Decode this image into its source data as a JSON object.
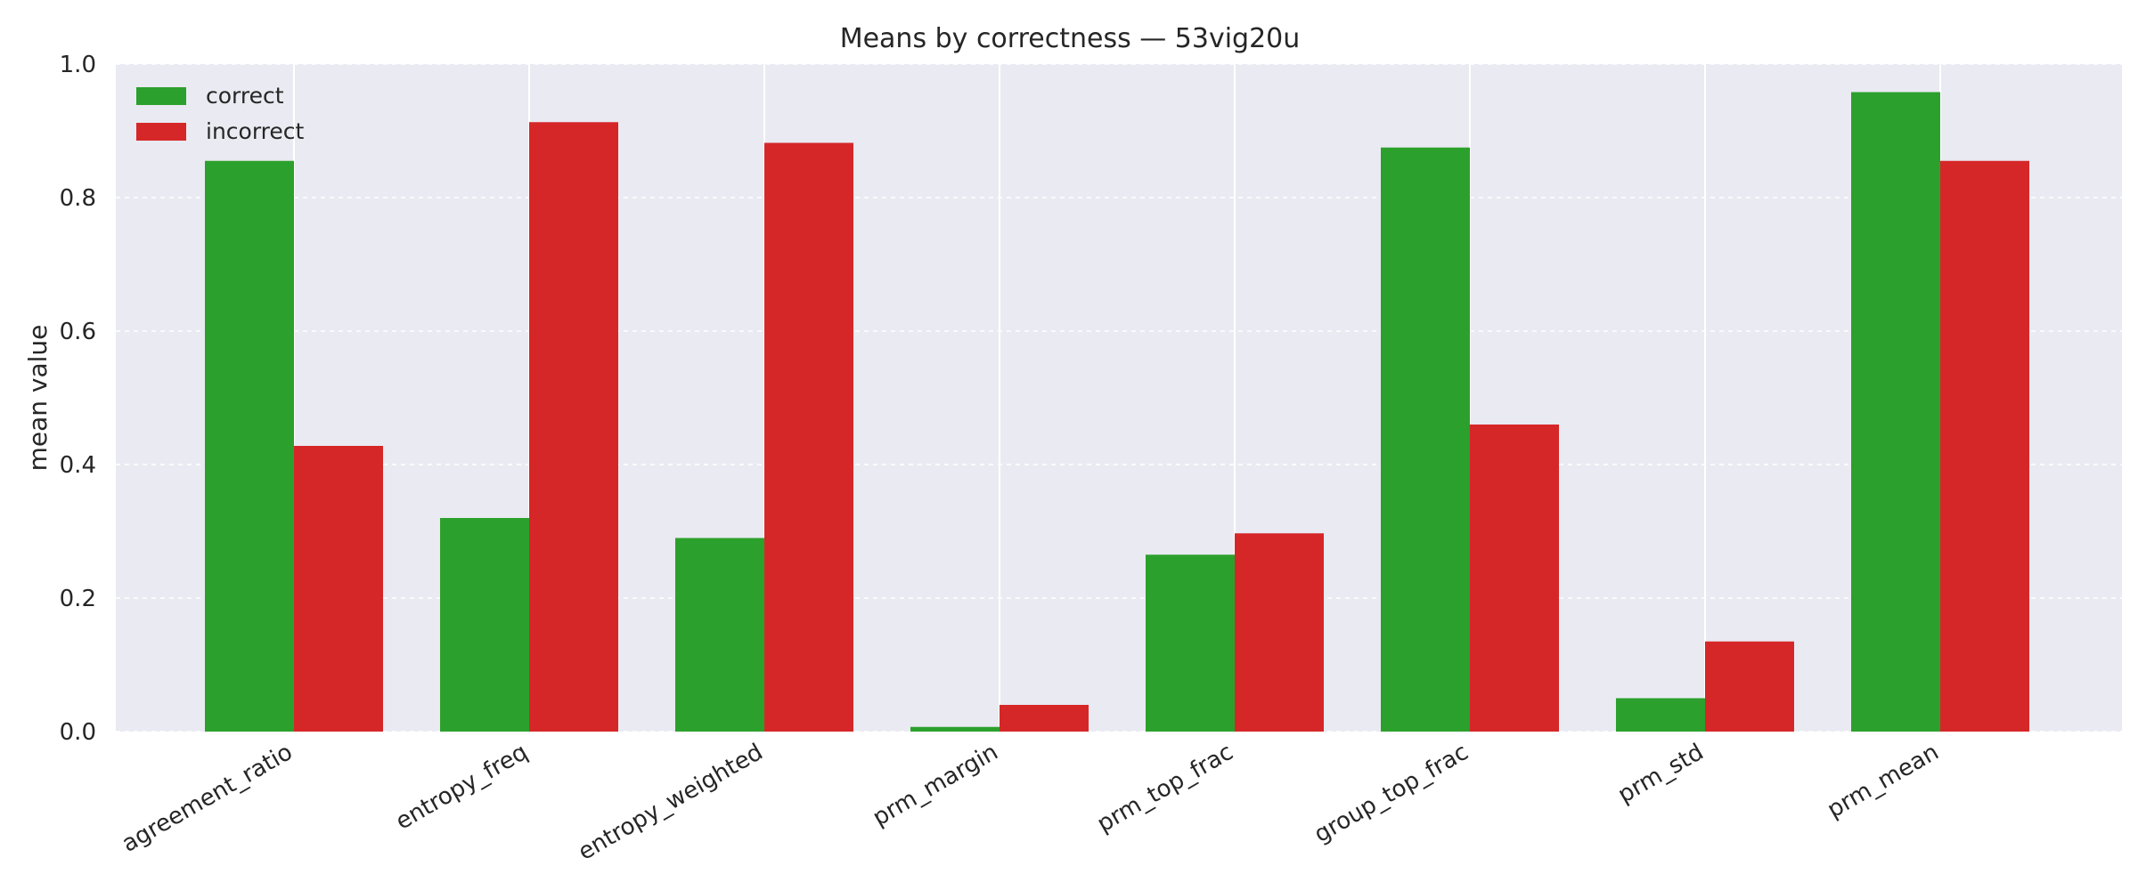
{
  "chart_data": {
    "type": "bar",
    "title": "Means by correctness — 53vig20u",
    "xlabel": "",
    "ylabel": "mean value",
    "ylim": [
      0,
      1.0
    ],
    "yticks": [
      "0.0",
      "0.2",
      "0.4",
      "0.6",
      "0.8",
      "1.0"
    ],
    "categories": [
      "agreement_ratio",
      "entropy_freq",
      "entropy_weighted",
      "prm_margin",
      "prm_top_frac",
      "group_top_frac",
      "prm_std",
      "prm_mean"
    ],
    "series": [
      {
        "name": "correct",
        "color": "#2ca02c",
        "values": [
          0.855,
          0.32,
          0.29,
          0.007,
          0.265,
          0.875,
          0.05,
          0.958
        ]
      },
      {
        "name": "incorrect",
        "color": "#d62728",
        "values": [
          0.428,
          0.913,
          0.882,
          0.04,
          0.297,
          0.46,
          0.135,
          0.855
        ]
      }
    ],
    "grid": true,
    "legend": "top-left"
  }
}
